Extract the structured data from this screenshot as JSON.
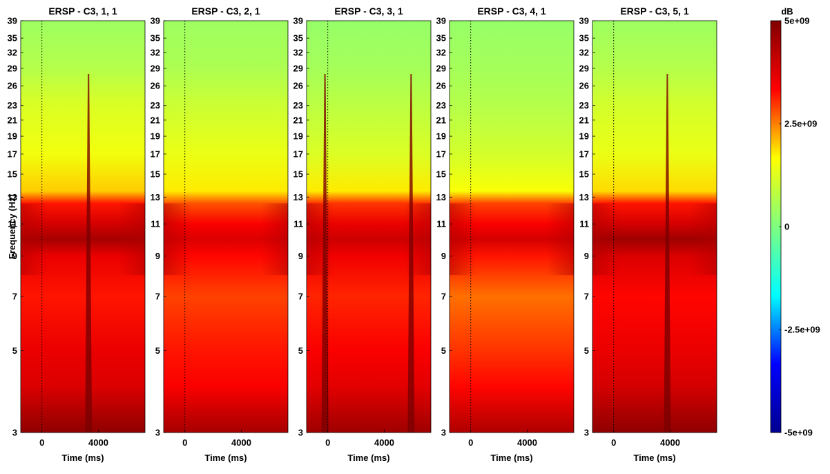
{
  "figure": {
    "ylabel": "Frequency (Hz)",
    "colorbar": {
      "title": "dB",
      "ticks": [
        "5e+09",
        "2.5e+09",
        "0",
        "-2.5e+09",
        "-5e+09"
      ],
      "tick_values": [
        5000000000.0,
        2500000000.0,
        0,
        -2500000000.0,
        -5000000000.0
      ],
      "range": [
        -5000000000.0,
        5000000000.0
      ],
      "colormap": "jet",
      "colors": [
        "#00008f",
        "#0000ff",
        "#00ffff",
        "#7fff7f",
        "#ffff00",
        "#ff0000",
        "#800000"
      ]
    }
  },
  "chart_data": [
    {
      "type": "heatmap",
      "title": "ERSP - C3, 1, 1",
      "xlabel": "Time (ms)",
      "ylabel": "Frequency (Hz)",
      "x_ticks": [
        0,
        4000
      ],
      "x_tick_labels": [
        "0",
        "4000"
      ],
      "xlim": [
        -1500,
        7300
      ],
      "y_scale": "log",
      "ylim": [
        3,
        39
      ],
      "y_ticks": [
        3,
        5,
        7,
        9,
        11,
        13,
        15,
        17,
        19,
        21,
        23,
        26,
        29,
        32,
        35,
        39
      ],
      "y_tick_labels": [
        "3",
        "5",
        "7",
        "9",
        "11",
        "13",
        "15",
        "17",
        "19",
        "21",
        "23",
        "26",
        "29",
        "32",
        "35",
        "39"
      ],
      "event_line_x": 0,
      "profile_by_frequency": [
        {
          "freq": 3,
          "value": 4800000000.0
        },
        {
          "freq": 4,
          "value": 3800000000.0
        },
        {
          "freq": 5,
          "value": 3600000000.0
        },
        {
          "freq": 7,
          "value": 3200000000.0
        },
        {
          "freq": 9,
          "value": 3600000000.0
        },
        {
          "freq": 10,
          "value": 4500000000.0
        },
        {
          "freq": 11,
          "value": 3900000000.0
        },
        {
          "freq": 12.5,
          "value": 3200000000.0
        },
        {
          "freq": 13.5,
          "value": 2000000000.0
        },
        {
          "freq": 17,
          "value": 1500000000.0
        },
        {
          "freq": 23,
          "value": 1200000000.0
        },
        {
          "freq": 29,
          "value": 700000000.0
        },
        {
          "freq": 39,
          "value": 400000000.0
        }
      ],
      "streaks_ms": [
        3300
      ]
    },
    {
      "type": "heatmap",
      "title": "ERSP - C3, 2, 1",
      "xlabel": "Time (ms)",
      "ylabel": "",
      "x_ticks": [
        0,
        4000
      ],
      "x_tick_labels": [
        "0",
        "4000"
      ],
      "xlim": [
        -1500,
        7300
      ],
      "y_scale": "log",
      "ylim": [
        3,
        39
      ],
      "y_ticks": [
        3,
        5,
        7,
        9,
        11,
        13,
        15,
        17,
        19,
        21,
        23,
        26,
        29,
        32,
        35,
        39
      ],
      "y_tick_labels": [
        "3",
        "5",
        "7",
        "9",
        "11",
        "13",
        "15",
        "17",
        "19",
        "21",
        "23",
        "26",
        "29",
        "32",
        "35",
        "39"
      ],
      "event_line_x": 0,
      "profile_by_frequency": [
        {
          "freq": 3,
          "value": 4500000000.0
        },
        {
          "freq": 4,
          "value": 3400000000.0
        },
        {
          "freq": 5,
          "value": 3200000000.0
        },
        {
          "freq": 7,
          "value": 2900000000.0
        },
        {
          "freq": 9,
          "value": 3300000000.0
        },
        {
          "freq": 10,
          "value": 3800000000.0
        },
        {
          "freq": 11,
          "value": 3400000000.0
        },
        {
          "freq": 12.5,
          "value": 2800000000.0
        },
        {
          "freq": 13.5,
          "value": 1800000000.0
        },
        {
          "freq": 17,
          "value": 1400000000.0
        },
        {
          "freq": 23,
          "value": 1000000000.0
        },
        {
          "freq": 29,
          "value": 600000000.0
        },
        {
          "freq": 39,
          "value": 400000000.0
        }
      ],
      "streaks_ms": []
    },
    {
      "type": "heatmap",
      "title": "ERSP - C3, 3, 1",
      "xlabel": "Time (ms)",
      "ylabel": "",
      "x_ticks": [
        0,
        4000
      ],
      "x_tick_labels": [
        "0",
        "4000"
      ],
      "xlim": [
        -1500,
        7300
      ],
      "y_scale": "log",
      "ylim": [
        3,
        39
      ],
      "y_ticks": [
        3,
        5,
        7,
        9,
        11,
        13,
        15,
        17,
        19,
        21,
        23,
        26,
        29,
        32,
        35,
        39
      ],
      "y_tick_labels": [
        "3",
        "5",
        "7",
        "9",
        "11",
        "13",
        "15",
        "17",
        "19",
        "21",
        "23",
        "26",
        "29",
        "32",
        "35",
        "39"
      ],
      "event_line_x": 0,
      "profile_by_frequency": [
        {
          "freq": 3,
          "value": 4600000000.0
        },
        {
          "freq": 4,
          "value": 3700000000.0
        },
        {
          "freq": 5,
          "value": 3400000000.0
        },
        {
          "freq": 7,
          "value": 3100000000.0
        },
        {
          "freq": 9,
          "value": 3500000000.0
        },
        {
          "freq": 10,
          "value": 4000000000.0
        },
        {
          "freq": 11,
          "value": 3600000000.0
        },
        {
          "freq": 12.5,
          "value": 3000000000.0
        },
        {
          "freq": 13.5,
          "value": 1800000000.0
        },
        {
          "freq": 17,
          "value": 1200000000.0
        },
        {
          "freq": 23,
          "value": 800000000.0
        },
        {
          "freq": 29,
          "value": 500000000.0
        },
        {
          "freq": 39,
          "value": 300000000.0
        }
      ],
      "streaks_ms": [
        -200,
        5900
      ]
    },
    {
      "type": "heatmap",
      "title": "ERSP - C3, 4, 1",
      "xlabel": "Time (ms)",
      "ylabel": "",
      "x_ticks": [
        0,
        4000
      ],
      "x_tick_labels": [
        "0",
        "4000"
      ],
      "xlim": [
        -1500,
        7300
      ],
      "y_scale": "log",
      "ylim": [
        3,
        39
      ],
      "y_ticks": [
        3,
        5,
        7,
        9,
        11,
        13,
        15,
        17,
        19,
        21,
        23,
        26,
        29,
        32,
        35,
        39
      ],
      "y_tick_labels": [
        "3",
        "5",
        "7",
        "9",
        "11",
        "13",
        "15",
        "17",
        "19",
        "21",
        "23",
        "26",
        "29",
        "32",
        "35",
        "39"
      ],
      "event_line_x": 0,
      "profile_by_frequency": [
        {
          "freq": 3,
          "value": 4400000000.0
        },
        {
          "freq": 4,
          "value": 3300000000.0
        },
        {
          "freq": 5,
          "value": 3000000000.0
        },
        {
          "freq": 7,
          "value": 2600000000.0
        },
        {
          "freq": 9,
          "value": 3200000000.0
        },
        {
          "freq": 10,
          "value": 3900000000.0
        },
        {
          "freq": 11,
          "value": 3400000000.0
        },
        {
          "freq": 12.5,
          "value": 2900000000.0
        },
        {
          "freq": 13.5,
          "value": 1600000000.0
        },
        {
          "freq": 17,
          "value": 1100000000.0
        },
        {
          "freq": 23,
          "value": 700000000.0
        },
        {
          "freq": 29,
          "value": 500000000.0
        },
        {
          "freq": 39,
          "value": 300000000.0
        }
      ],
      "streaks_ms": []
    },
    {
      "type": "heatmap",
      "title": "ERSP - C3, 5, 1",
      "xlabel": "Time (ms)",
      "ylabel": "",
      "x_ticks": [
        0,
        4000
      ],
      "x_tick_labels": [
        "0",
        "4000"
      ],
      "xlim": [
        -1500,
        7300
      ],
      "y_scale": "log",
      "ylim": [
        3,
        39
      ],
      "y_ticks": [
        3,
        5,
        7,
        9,
        11,
        13,
        15,
        17,
        19,
        21,
        23,
        26,
        29,
        32,
        35,
        39
      ],
      "y_tick_labels": [
        "3",
        "5",
        "7",
        "9",
        "11",
        "13",
        "15",
        "17",
        "19",
        "21",
        "23",
        "26",
        "29",
        "32",
        "35",
        "39"
      ],
      "event_line_x": 0,
      "profile_by_frequency": [
        {
          "freq": 3,
          "value": 4800000000.0
        },
        {
          "freq": 4,
          "value": 3900000000.0
        },
        {
          "freq": 5,
          "value": 3600000000.0
        },
        {
          "freq": 7,
          "value": 3300000000.0
        },
        {
          "freq": 9,
          "value": 3800000000.0
        },
        {
          "freq": 10,
          "value": 4600000000.0
        },
        {
          "freq": 11,
          "value": 3900000000.0
        },
        {
          "freq": 12.5,
          "value": 3200000000.0
        },
        {
          "freq": 13.5,
          "value": 1900000000.0
        },
        {
          "freq": 17,
          "value": 1400000000.0
        },
        {
          "freq": 23,
          "value": 1100000000.0
        },
        {
          "freq": 29,
          "value": 700000000.0
        },
        {
          "freq": 39,
          "value": 400000000.0
        }
      ],
      "streaks_ms": [
        3800
      ]
    }
  ]
}
